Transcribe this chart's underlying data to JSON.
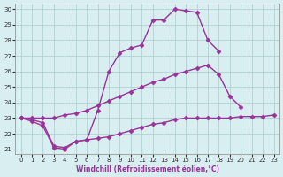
{
  "line_top_x": [
    0,
    1,
    2,
    3,
    4,
    5,
    6,
    7,
    8,
    9,
    10,
    11,
    12,
    13,
    14,
    15,
    16,
    17,
    18
  ],
  "line_top_y": [
    23.0,
    22.8,
    22.5,
    21.1,
    21.0,
    21.5,
    21.6,
    23.5,
    26.0,
    27.2,
    27.5,
    27.7,
    29.3,
    29.3,
    30.0,
    29.9,
    29.8,
    28.0,
    27.3
  ],
  "line_mid_x": [
    0,
    1,
    2,
    3,
    4,
    5,
    6,
    7,
    8,
    9,
    10,
    11,
    12,
    13,
    14,
    15,
    16,
    17,
    18,
    19,
    20
  ],
  "line_mid_y": [
    23.0,
    23.0,
    23.0,
    23.0,
    23.2,
    23.3,
    23.5,
    23.8,
    24.1,
    24.4,
    24.7,
    25.0,
    25.3,
    25.5,
    25.8,
    26.0,
    26.2,
    26.4,
    25.8,
    24.4,
    23.7
  ],
  "line_bot_x": [
    0,
    1,
    2,
    3,
    4,
    5,
    6,
    7,
    8,
    9,
    10,
    11,
    12,
    13,
    14,
    15,
    16,
    17,
    18,
    19,
    20,
    21,
    22,
    23
  ],
  "line_bot_y": [
    23.0,
    22.9,
    22.7,
    21.2,
    21.1,
    21.5,
    21.6,
    21.7,
    21.8,
    22.0,
    22.2,
    22.4,
    22.6,
    22.7,
    22.9,
    23.0,
    23.0,
    23.0,
    23.0,
    23.0,
    23.1,
    23.1,
    23.1,
    23.2
  ],
  "color": "#993399",
  "bg_color": "#d8eef0",
  "grid_color": "#aacccc",
  "xlabel": "Windchill (Refroidissement éolien,°C)",
  "ylim_min": 21,
  "ylim_max": 30,
  "xlim_min": 0,
  "xlim_max": 23,
  "yticks": [
    21,
    22,
    23,
    24,
    25,
    26,
    27,
    28,
    29,
    30
  ],
  "xticks": [
    0,
    1,
    2,
    3,
    4,
    5,
    6,
    7,
    8,
    9,
    10,
    11,
    12,
    13,
    14,
    15,
    16,
    17,
    18,
    19,
    20,
    21,
    22,
    23
  ],
  "marker": "D",
  "markersize": 2.5,
  "linewidth": 1.0
}
